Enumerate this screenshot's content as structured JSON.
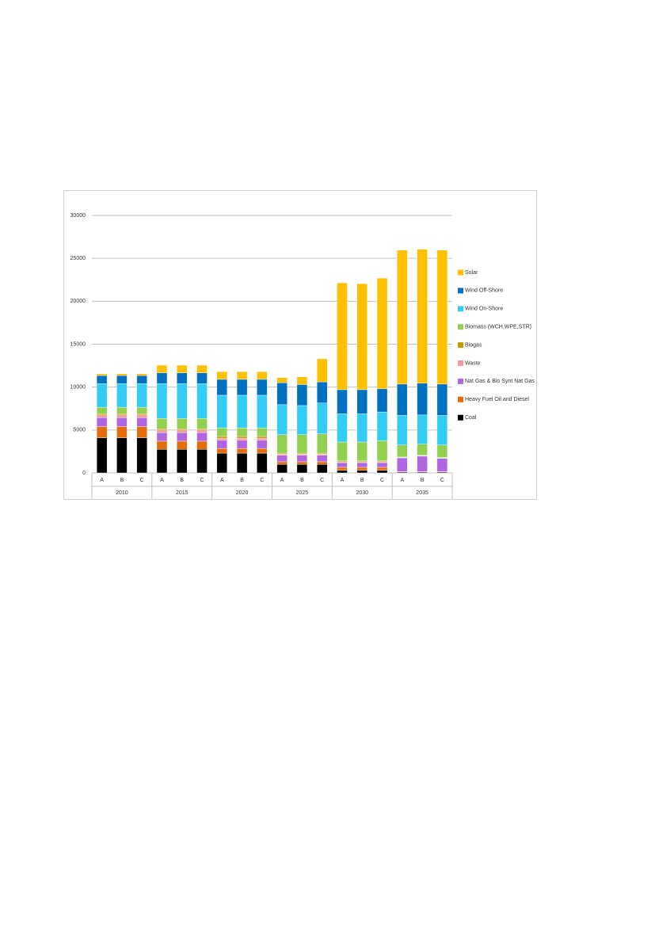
{
  "chart_data": {
    "type": "stacked-bar",
    "groups": [
      "2010",
      "2015",
      "2020",
      "2025",
      "2030",
      "2035"
    ],
    "categories": [
      "A",
      "B",
      "C",
      "A",
      "B",
      "C",
      "A",
      "B",
      "C",
      "A",
      "B",
      "C",
      "A",
      "B",
      "C",
      "A",
      "B",
      "C"
    ],
    "ylim": [
      0,
      30000
    ],
    "yticks": [
      0,
      5000,
      10000,
      15000,
      20000,
      25000,
      30000
    ],
    "grid": true,
    "legend": "right",
    "series": [
      {
        "name": "Coal",
        "color": "#000000",
        "values": [
          4100,
          4100,
          4100,
          2750,
          2750,
          2750,
          2300,
          2300,
          2300,
          1000,
          1000,
          1000,
          300,
          300,
          300,
          100,
          100,
          100
        ]
      },
      {
        "name": "Heavy Fuel Oil and Diesel",
        "color": "#e46c0a",
        "values": [
          1300,
          1300,
          1300,
          950,
          950,
          950,
          550,
          550,
          550,
          300,
          300,
          300,
          350,
          350,
          350,
          50,
          50,
          50
        ]
      },
      {
        "name": "Nat Gas & Bio Synt Nat Gas",
        "color": "#b066e0",
        "values": [
          1050,
          1050,
          1050,
          1000,
          1000,
          1000,
          950,
          950,
          950,
          750,
          750,
          750,
          550,
          550,
          550,
          1600,
          1800,
          1550
        ]
      },
      {
        "name": "Waste",
        "color": "#f19a9a",
        "values": [
          300,
          300,
          300,
          300,
          300,
          300,
          250,
          250,
          250,
          150,
          150,
          150,
          100,
          100,
          100,
          50,
          50,
          50
        ]
      },
      {
        "name": "Biogas",
        "color": "#c49a00",
        "values": [
          150,
          150,
          150,
          150,
          150,
          150,
          200,
          200,
          200,
          100,
          100,
          100,
          100,
          100,
          100,
          50,
          50,
          50
        ]
      },
      {
        "name": "Biomass (WCH,WPE,STR)",
        "color": "#92d050",
        "values": [
          750,
          750,
          750,
          1200,
          1200,
          1200,
          1000,
          1000,
          1000,
          2150,
          2150,
          2250,
          2200,
          2200,
          2350,
          1400,
          1300,
          1450
        ]
      },
      {
        "name": "Wind On-Shore",
        "color": "#33ccf5",
        "values": [
          2750,
          2750,
          2750,
          4050,
          4050,
          4050,
          3800,
          3800,
          3800,
          3500,
          3400,
          3600,
          3300,
          3300,
          3350,
          3450,
          3400,
          3450
        ]
      },
      {
        "name": "Wind Off-Shore",
        "color": "#0070c0",
        "values": [
          950,
          950,
          950,
          1250,
          1250,
          1250,
          1850,
          1850,
          1850,
          2550,
          2450,
          2450,
          2800,
          2800,
          2700,
          3650,
          3700,
          3650
        ]
      },
      {
        "name": "Solar",
        "color": "#ffc000",
        "values": [
          200,
          200,
          200,
          900,
          900,
          900,
          900,
          900,
          900,
          600,
          900,
          2700,
          12450,
          12350,
          12900,
          15600,
          15600,
          15600
        ]
      }
    ]
  }
}
